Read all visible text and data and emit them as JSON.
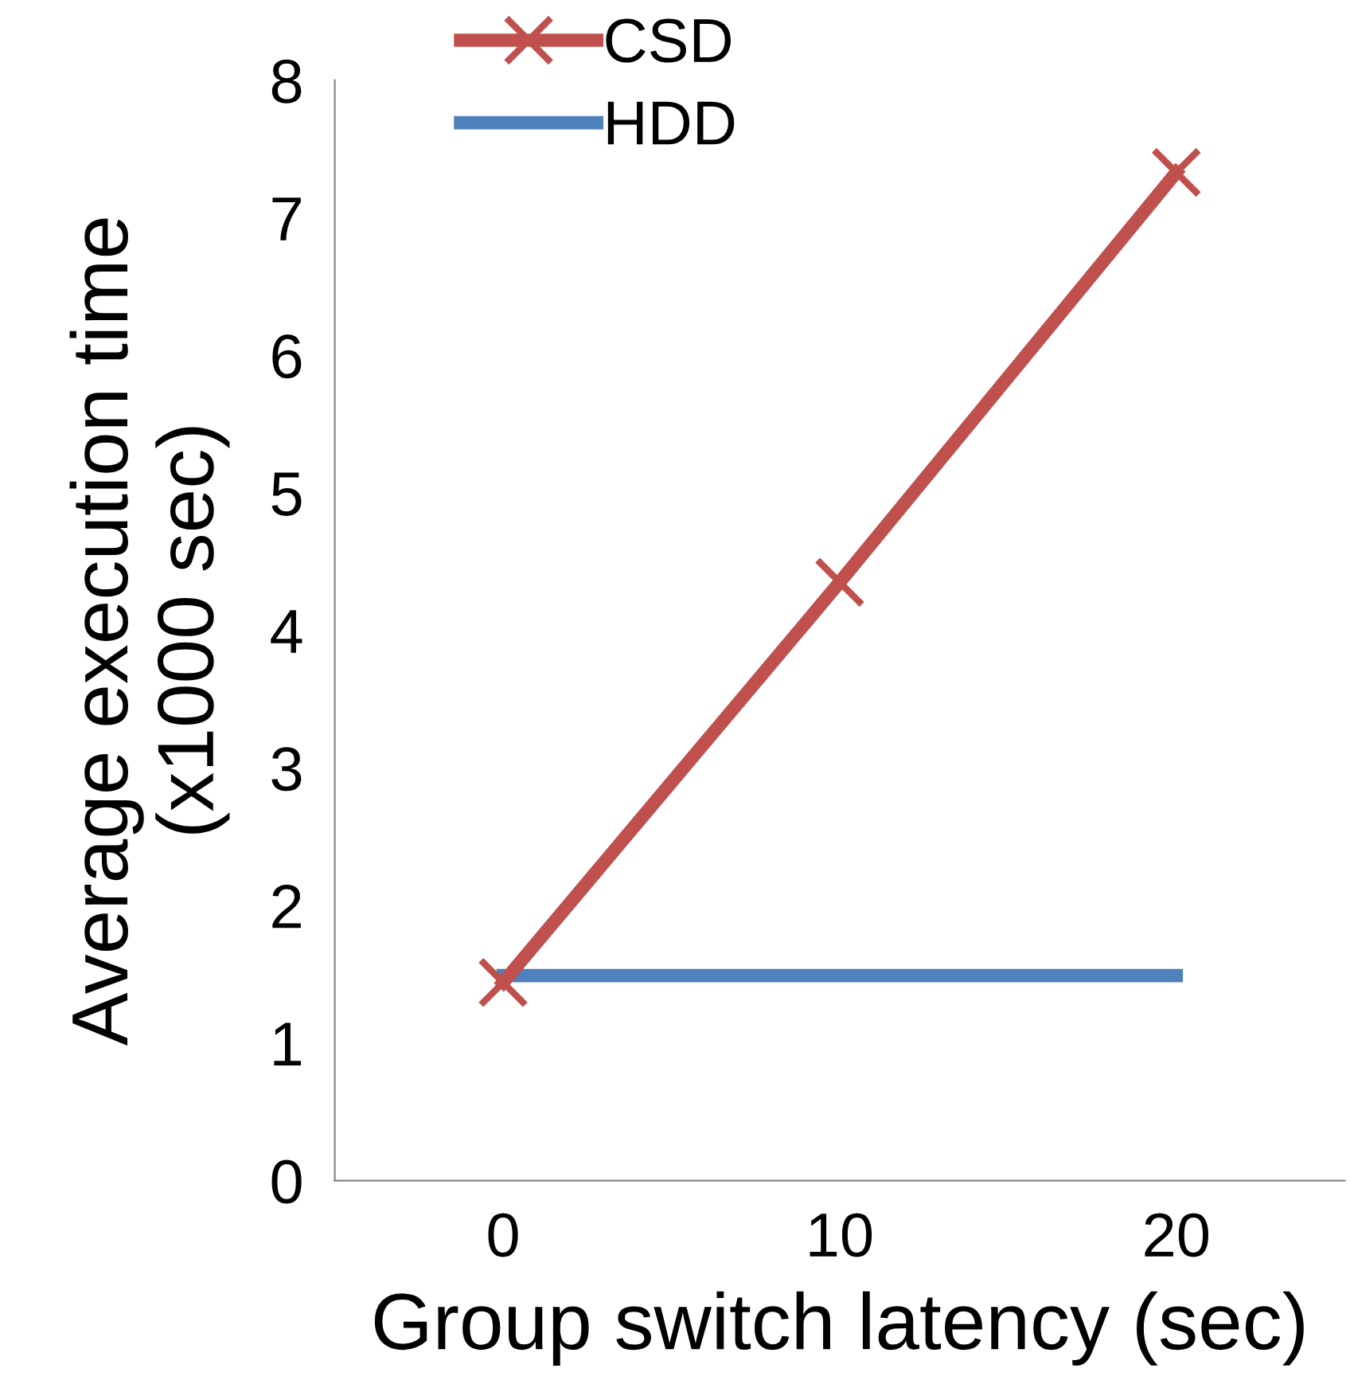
{
  "chart_data": {
    "type": "line",
    "xlabel": "Group switch latency (sec)",
    "ylabel": "Average execution time\n(x1000 sec)",
    "x": [
      0,
      10,
      20
    ],
    "series": [
      {
        "name": "CSD",
        "color": "#c0504d",
        "values": [
          1.44,
          4.35,
          7.33
        ],
        "marker": "cross"
      },
      {
        "name": "HDD",
        "color": "#4f81bd",
        "values": [
          1.49,
          1.49,
          1.49
        ],
        "marker": "none"
      }
    ],
    "xlim": [
      -5,
      25
    ],
    "xticks": [
      0,
      10,
      20
    ],
    "ylim": [
      0,
      8
    ],
    "yticks": [
      0,
      1,
      2,
      3,
      4,
      5,
      6,
      7,
      8
    ],
    "grid": false,
    "legend": "top",
    "line_style": "solid"
  }
}
